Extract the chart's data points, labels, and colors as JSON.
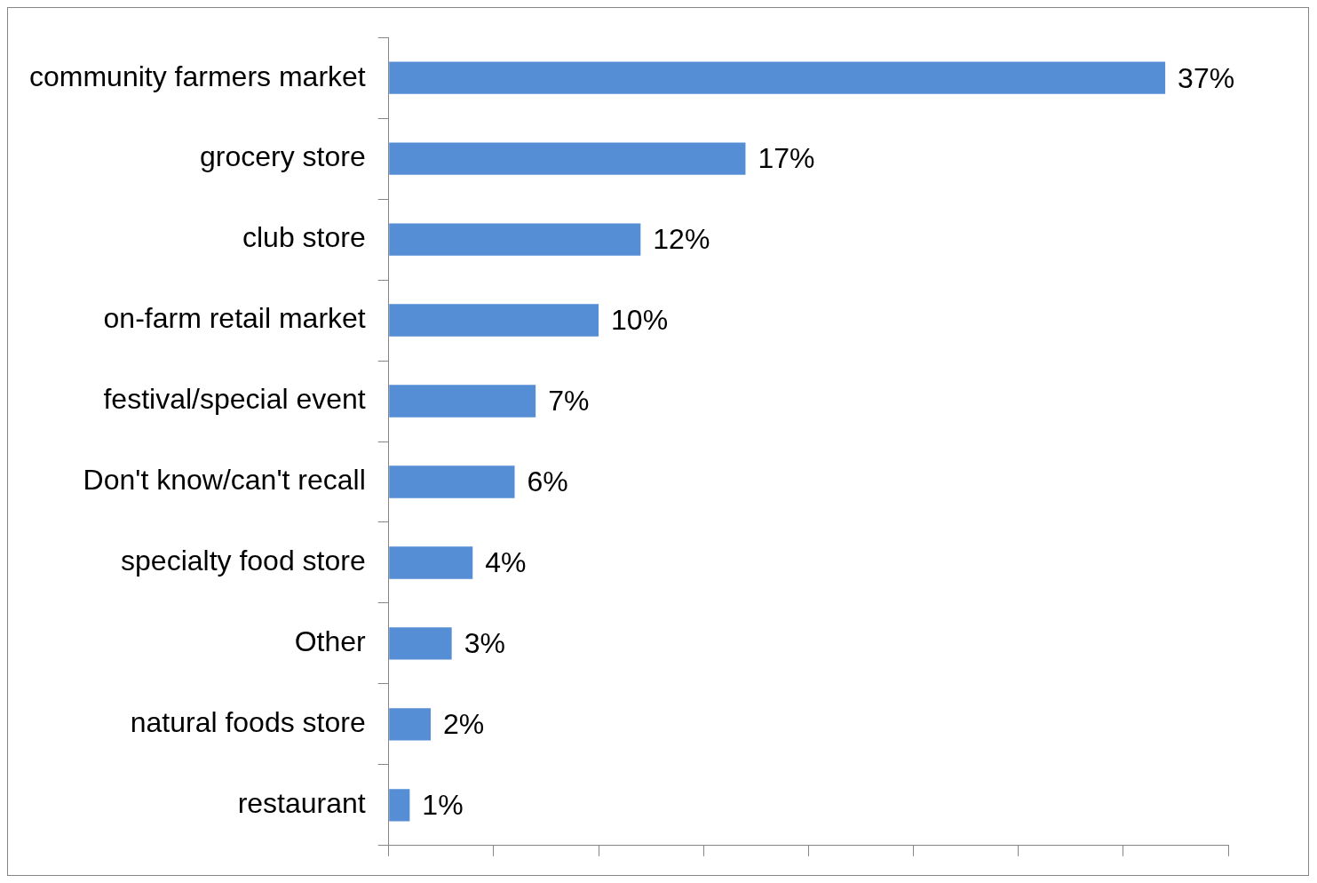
{
  "chart_data": {
    "type": "bar",
    "orientation": "horizontal",
    "categories": [
      "community farmers market",
      "grocery store",
      "club store",
      "on-farm retail market",
      "festival/special event",
      "Don't know/can't recall",
      "specialty food store",
      "Other",
      "natural foods store",
      "restaurant"
    ],
    "values": [
      37,
      17,
      12,
      10,
      7,
      6,
      4,
      3,
      2,
      1
    ],
    "value_labels": [
      "37%",
      "17%",
      "12%",
      "10%",
      "7%",
      "6%",
      "4%",
      "3%",
      "2%",
      "1%"
    ],
    "color": "#558ed5",
    "xlim": [
      0,
      40
    ],
    "xticks": [
      {
        "value": 0,
        "label": null
      },
      {
        "value": 5,
        "label": null
      },
      {
        "value": 10,
        "label": null
      },
      {
        "value": 15,
        "label": null
      },
      {
        "value": 20,
        "label": null
      },
      {
        "value": 25,
        "label": null
      },
      {
        "value": 30,
        "label": null
      },
      {
        "value": 35,
        "label": null
      },
      {
        "value": 40,
        "label": null
      }
    ],
    "tick_labels": "y",
    "grid": false,
    "legend": false
  }
}
